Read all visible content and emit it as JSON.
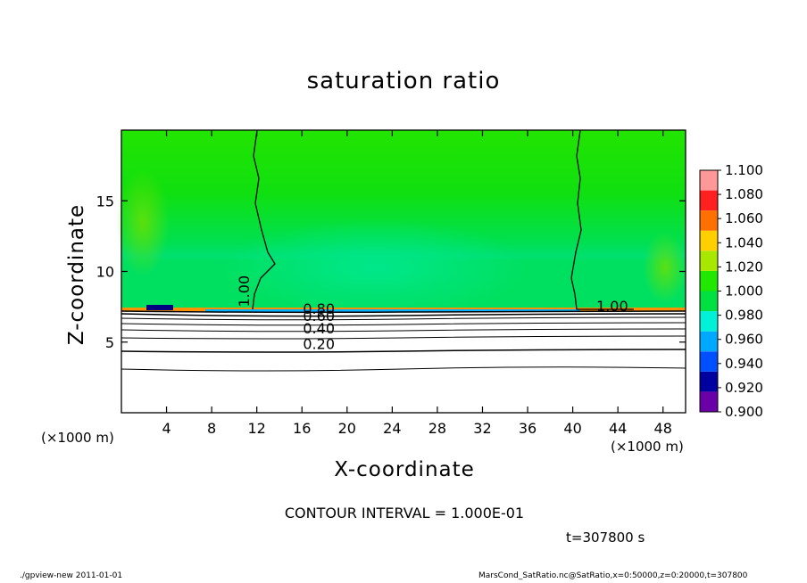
{
  "chart_data": {
    "type": "heatmap",
    "title": "saturation ratio",
    "xlabel": "X-coordinate",
    "ylabel": "Z-coordinate",
    "x_unit": "(×1000 m)",
    "x_ticks": [
      4,
      8,
      12,
      16,
      20,
      24,
      28,
      32,
      36,
      40,
      44,
      48
    ],
    "y_ticks": [
      5,
      10,
      15
    ],
    "xlim": [
      0,
      50
    ],
    "ylim": [
      0,
      20
    ],
    "colorbar": {
      "levels": [
        "0.900",
        "0.920",
        "0.940",
        "0.960",
        "0.980",
        "1.000",
        "1.020",
        "1.040",
        "1.060",
        "1.080",
        "1.100"
      ],
      "colors": [
        "#6a00a8",
        "#0000a0",
        "#0050ff",
        "#00a8ff",
        "#00f0d8",
        "#00e040",
        "#20e800",
        "#a8e800",
        "#ffd000",
        "#ff7000",
        "#ff2020",
        "#ff9898"
      ]
    },
    "contour_labels": [
      {
        "text": "1.00",
        "x": 11.3,
        "z": 8.6
      },
      {
        "text": "1.00",
        "x": 43.5,
        "z": 7.2
      },
      {
        "text": "0.80",
        "x": 17.5,
        "z": 7.0
      },
      {
        "text": "0.60",
        "x": 17.5,
        "z": 6.5
      },
      {
        "text": "0.40",
        "x": 17.5,
        "z": 5.6
      },
      {
        "text": "0.20",
        "x": 17.5,
        "z": 4.5
      }
    ],
    "contour_interval": "CONTOUR INTERVAL = 1.000E-01",
    "time": "t=307800 s"
  },
  "footer": {
    "left": "./gpview-new   2011-01-01",
    "right": "MarsCond_SatRatio.nc@SatRatio,x=0:50000,z=0:20000,t=307800"
  }
}
